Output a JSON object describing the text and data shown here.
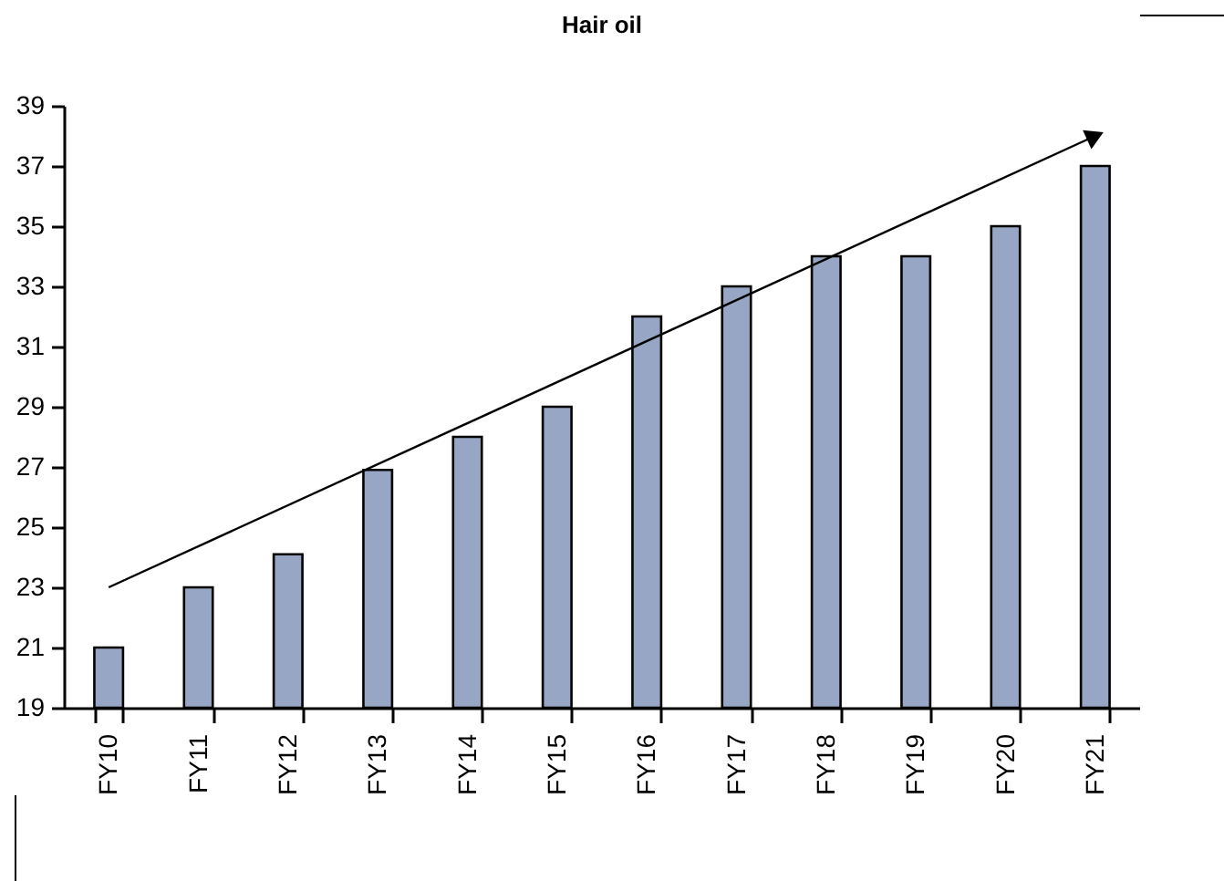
{
  "chart_data": {
    "type": "bar",
    "title": "Hair oil",
    "categories": [
      "FY10",
      "FY11",
      "FY12",
      "FY13",
      "FY14",
      "FY15",
      "FY16",
      "FY17",
      "FY18",
      "FY19",
      "FY20",
      "FY21"
    ],
    "series": [
      {
        "color": "#97a6c4",
        "values": [
          21,
          23,
          24.1,
          26.9,
          28,
          29,
          32,
          33,
          34,
          34,
          35,
          37
        ]
      },
      {
        "type": "line",
        "color": "#000000",
        "x": [
          "FY10",
          "FY21"
        ],
        "values": [
          23,
          38
        ]
      }
    ],
    "ylim": [
      19,
      39
    ],
    "yticks": [
      19,
      21,
      23,
      25,
      27,
      29,
      31,
      33,
      35,
      37,
      39
    ],
    "grid": false
  }
}
